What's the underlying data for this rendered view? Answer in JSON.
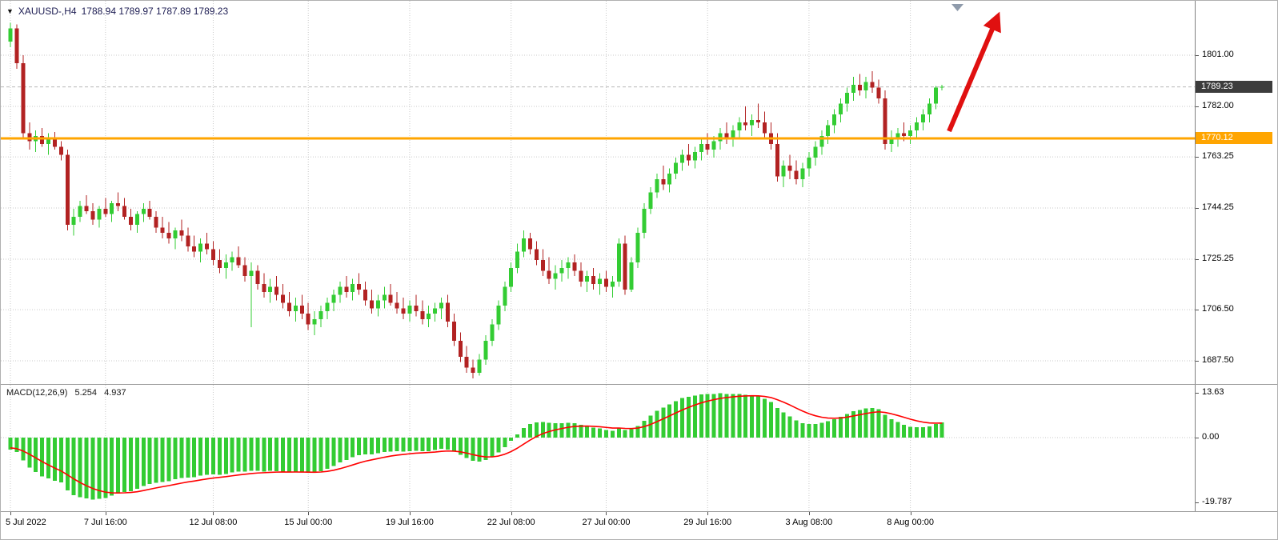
{
  "window": {
    "title": "XAUUSD H4 chart"
  },
  "header": {
    "symbol": "XAUUSD-,H4",
    "ohlc": "1788.94 1789.97 1787.89 1789.23",
    "dropdown_icon": "symbol-marker"
  },
  "chart_data": {
    "type": "candlestick",
    "symbol": "XAUUSD-",
    "timeframe": "H4",
    "title": "XAUUSD-,H4 1788.94 1789.97 1787.89 1789.23",
    "current_candle": {
      "open": "1788.94",
      "high": "1789.97",
      "low": "1787.89",
      "close": "1789.23"
    },
    "current_price": "1789.23",
    "hline_price": "1770.12",
    "price_ticks": [
      "1801.00",
      "1782.00",
      "1763.25",
      "1744.25",
      "1725.25",
      "1706.50",
      "1687.50"
    ],
    "price_axis": {
      "visible_min": 1678.9,
      "visible_max": 1821.2
    },
    "time_ticks": [
      {
        "label": "5 Jul 2022",
        "index": 0,
        "align": "left"
      },
      {
        "label": "7 Jul 16:00",
        "index": 15
      },
      {
        "label": "12 Jul 08:00",
        "index": 32
      },
      {
        "label": "15 Jul 00:00",
        "index": 47
      },
      {
        "label": "19 Jul 16:00",
        "index": 63
      },
      {
        "label": "22 Jul 08:00",
        "index": 79
      },
      {
        "label": "27 Jul 00:00",
        "index": 94
      },
      {
        "label": "29 Jul 16:00",
        "index": 110
      },
      {
        "label": "3 Aug 08:00",
        "index": 126
      },
      {
        "label": "8 Aug 00:00",
        "index": 142
      }
    ],
    "candles": [
      [
        1806,
        1813,
        1804,
        1811
      ],
      [
        1811,
        1812.5,
        1796,
        1798
      ],
      [
        1798,
        1801,
        1770,
        1772
      ],
      [
        1772,
        1776,
        1766,
        1769
      ],
      [
        1769,
        1773,
        1765,
        1771
      ],
      [
        1771,
        1774,
        1767,
        1768
      ],
      [
        1768,
        1772,
        1764,
        1770
      ],
      [
        1770,
        1772.5,
        1766,
        1767
      ],
      [
        1767,
        1769,
        1762,
        1764
      ],
      [
        1764,
        1766,
        1736,
        1738
      ],
      [
        1738,
        1744,
        1734,
        1741
      ],
      [
        1741,
        1747,
        1739,
        1745
      ],
      [
        1745,
        1749,
        1742,
        1743
      ],
      [
        1743,
        1746,
        1738,
        1740
      ],
      [
        1740,
        1745,
        1737,
        1744
      ],
      [
        1744,
        1748,
        1741,
        1742
      ],
      [
        1742,
        1747,
        1739,
        1746
      ],
      [
        1746,
        1750,
        1743,
        1745
      ],
      [
        1745,
        1748,
        1740,
        1741
      ],
      [
        1741,
        1744,
        1736,
        1738
      ],
      [
        1738,
        1743,
        1735,
        1742
      ],
      [
        1742,
        1746,
        1739,
        1744
      ],
      [
        1744,
        1747,
        1740,
        1741
      ],
      [
        1741,
        1743,
        1735,
        1737
      ],
      [
        1737,
        1741,
        1733,
        1735
      ],
      [
        1735,
        1739,
        1731,
        1733
      ],
      [
        1733,
        1737,
        1729,
        1736
      ],
      [
        1736,
        1740,
        1732,
        1734
      ],
      [
        1734,
        1737,
        1728,
        1730
      ],
      [
        1730,
        1734,
        1726,
        1728
      ],
      [
        1728,
        1733,
        1724,
        1731
      ],
      [
        1731,
        1735,
        1727,
        1729
      ],
      [
        1729,
        1732,
        1723,
        1725
      ],
      [
        1725,
        1729,
        1720,
        1722
      ],
      [
        1722,
        1727,
        1718,
        1724
      ],
      [
        1724,
        1728,
        1721,
        1726
      ],
      [
        1726,
        1730,
        1722,
        1723
      ],
      [
        1723,
        1726,
        1717,
        1719
      ],
      [
        1719,
        1724,
        1700,
        1721
      ],
      [
        1721,
        1723,
        1714,
        1716
      ],
      [
        1716,
        1720,
        1711,
        1713
      ],
      [
        1713,
        1718,
        1709,
        1715
      ],
      [
        1715,
        1719,
        1710,
        1712
      ],
      [
        1712,
        1716,
        1707,
        1709
      ],
      [
        1709,
        1713,
        1704,
        1706
      ],
      [
        1706,
        1711,
        1702,
        1708
      ],
      [
        1708,
        1712,
        1703,
        1705
      ],
      [
        1705,
        1709,
        1699,
        1701
      ],
      [
        1701,
        1706,
        1697,
        1703
      ],
      [
        1703,
        1708,
        1700,
        1706
      ],
      [
        1706,
        1711,
        1703,
        1709
      ],
      [
        1709,
        1714,
        1706,
        1712
      ],
      [
        1712,
        1717,
        1709,
        1715
      ],
      [
        1715,
        1719,
        1711,
        1713
      ],
      [
        1713,
        1718,
        1710,
        1716
      ],
      [
        1716,
        1720,
        1712,
        1714
      ],
      [
        1714,
        1717,
        1708,
        1710
      ],
      [
        1710,
        1714,
        1705,
        1707
      ],
      [
        1707,
        1712,
        1704,
        1710
      ],
      [
        1710,
        1715,
        1707,
        1712
      ],
      [
        1712,
        1716,
        1708,
        1709
      ],
      [
        1709,
        1713,
        1705,
        1707
      ],
      [
        1707,
        1711,
        1703,
        1705
      ],
      [
        1705,
        1710,
        1702,
        1708
      ],
      [
        1708,
        1712,
        1704,
        1706
      ],
      [
        1706,
        1710,
        1701,
        1703
      ],
      [
        1703,
        1708,
        1700,
        1705
      ],
      [
        1705,
        1709,
        1702,
        1707
      ],
      [
        1707,
        1711,
        1703,
        1709
      ],
      [
        1709,
        1712,
        1700,
        1702
      ],
      [
        1702,
        1705,
        1693,
        1695
      ],
      [
        1695,
        1698,
        1687,
        1689
      ],
      [
        1689,
        1693,
        1683,
        1685
      ],
      [
        1685,
        1688,
        1681,
        1683
      ],
      [
        1683,
        1690,
        1682,
        1688
      ],
      [
        1688,
        1697,
        1686,
        1695
      ],
      [
        1695,
        1703,
        1693,
        1701
      ],
      [
        1701,
        1710,
        1699,
        1708
      ],
      [
        1708,
        1717,
        1706,
        1715
      ],
      [
        1715,
        1724,
        1713,
        1722
      ],
      [
        1722,
        1731,
        1720,
        1728
      ],
      [
        1728,
        1736,
        1726,
        1733
      ],
      [
        1733,
        1735,
        1727,
        1729
      ],
      [
        1729,
        1732,
        1723,
        1725
      ],
      [
        1725,
        1729,
        1719,
        1721
      ],
      [
        1721,
        1726,
        1716,
        1718
      ],
      [
        1718,
        1723,
        1714,
        1720
      ],
      [
        1720,
        1725,
        1717,
        1722
      ],
      [
        1722,
        1726,
        1718,
        1724
      ],
      [
        1724,
        1727,
        1719,
        1721
      ],
      [
        1721,
        1724,
        1715,
        1717
      ],
      [
        1717,
        1721,
        1713,
        1719
      ],
      [
        1719,
        1722,
        1714,
        1716
      ],
      [
        1716,
        1720,
        1712,
        1718
      ],
      [
        1718,
        1721,
        1713,
        1715
      ],
      [
        1715,
        1719,
        1711,
        1717
      ],
      [
        1717,
        1733,
        1715,
        1731
      ],
      [
        1731,
        1734,
        1712,
        1714
      ],
      [
        1714,
        1726,
        1713,
        1724
      ],
      [
        1724,
        1737,
        1722,
        1735
      ],
      [
        1735,
        1746,
        1733,
        1744
      ],
      [
        1744,
        1752,
        1742,
        1750
      ],
      [
        1750,
        1757,
        1748,
        1755
      ],
      [
        1755,
        1760,
        1751,
        1753
      ],
      [
        1753,
        1759,
        1750,
        1757
      ],
      [
        1757,
        1763,
        1755,
        1761
      ],
      [
        1761,
        1766,
        1758,
        1764
      ],
      [
        1764,
        1768,
        1760,
        1762
      ],
      [
        1762,
        1767,
        1759,
        1765
      ],
      [
        1765,
        1770,
        1762,
        1768
      ],
      [
        1768,
        1772,
        1764,
        1766
      ],
      [
        1766,
        1771,
        1763,
        1769
      ],
      [
        1769,
        1774,
        1766,
        1772
      ],
      [
        1772,
        1776,
        1768,
        1770
      ],
      [
        1770,
        1775,
        1767,
        1773
      ],
      [
        1773,
        1778,
        1770,
        1776
      ],
      [
        1776,
        1782,
        1773,
        1775
      ],
      [
        1775,
        1779,
        1771,
        1777
      ],
      [
        1777,
        1783,
        1774,
        1776
      ],
      [
        1776,
        1780,
        1770,
        1772
      ],
      [
        1772,
        1776,
        1766,
        1768
      ],
      [
        1768,
        1772,
        1754,
        1756
      ],
      [
        1756,
        1762,
        1752,
        1760
      ],
      [
        1760,
        1764,
        1755,
        1758
      ],
      [
        1758,
        1762,
        1753,
        1755
      ],
      [
        1755,
        1761,
        1752,
        1759
      ],
      [
        1759,
        1765,
        1756,
        1763
      ],
      [
        1763,
        1769,
        1760,
        1767
      ],
      [
        1767,
        1773,
        1764,
        1771
      ],
      [
        1771,
        1777,
        1768,
        1775
      ],
      [
        1775,
        1781,
        1772,
        1779
      ],
      [
        1779,
        1785,
        1776,
        1783
      ],
      [
        1783,
        1789,
        1780,
        1787
      ],
      [
        1787,
        1793,
        1784,
        1790
      ],
      [
        1790,
        1794,
        1786,
        1788
      ],
      [
        1788,
        1793,
        1785,
        1791
      ],
      [
        1791,
        1795,
        1787,
        1789
      ],
      [
        1789,
        1792,
        1783,
        1785
      ],
      [
        1785,
        1788,
        1766,
        1768
      ],
      [
        1768,
        1773,
        1765,
        1770
      ],
      [
        1770,
        1774,
        1767,
        1772
      ],
      [
        1772,
        1776,
        1769,
        1771
      ],
      [
        1771,
        1775,
        1768,
        1773
      ],
      [
        1773,
        1778,
        1770,
        1776
      ],
      [
        1776,
        1781,
        1773,
        1779
      ],
      [
        1779,
        1785,
        1776,
        1783
      ],
      [
        1783,
        1789.5,
        1781,
        1788.9
      ],
      [
        1788.9,
        1790,
        1787.9,
        1789.2
      ]
    ],
    "macd": {
      "label": "MACD(12,26,9)",
      "macd_value": "5.254",
      "signal_value": "4.937",
      "params": {
        "fast": 12,
        "slow": 26,
        "signal": 9
      },
      "ticks": [
        {
          "label": "13.63",
          "value": 13.63
        },
        {
          "label": "0.00",
          "value": 0
        },
        {
          "label": "-19.787",
          "value": -19.787
        }
      ]
    },
    "colors": {
      "bull": "#33cc33",
      "bear": "#b22222",
      "histogram": "#33cc33",
      "signal": "#ff0000",
      "hline": "#ffa500",
      "arrow": "#e01010",
      "current_badge": "#3c3c3c",
      "grid": "#c9c9c9",
      "bid_line": "#b8b8b8",
      "anchor": "#8f9bab"
    },
    "annotations": {
      "trend_arrow": "red up-right arrow drawn over the latest candles",
      "horizontal_line": "orange support line at 1770.12"
    }
  }
}
